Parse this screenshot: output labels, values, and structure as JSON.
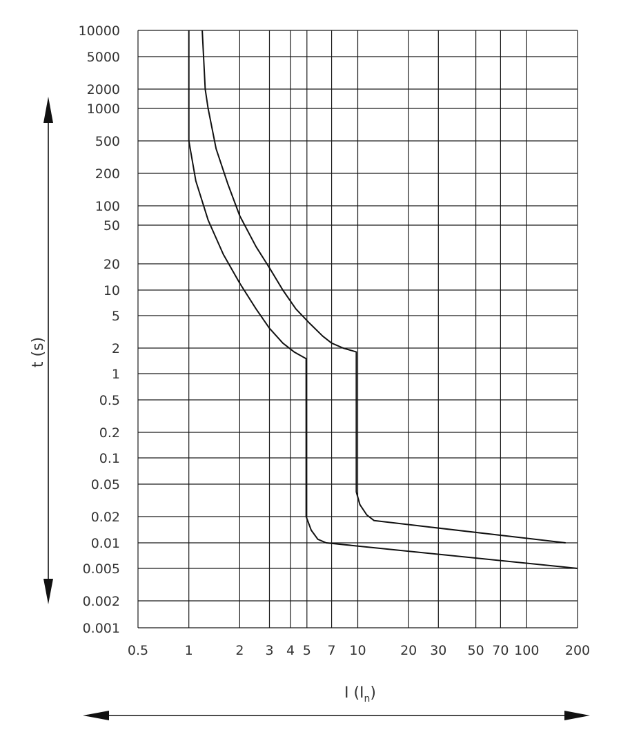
{
  "chart_data": {
    "type": "line",
    "x_scale": "log",
    "y_scale": "log",
    "grid": true,
    "xlabel": {
      "main": "I (I",
      "sub": "n",
      "close": ")"
    },
    "ylabel": "t (s)",
    "x_ticks": [
      "0.5",
      "1",
      "2",
      "3",
      "4",
      "5",
      "7",
      "10",
      "20",
      "30",
      "50",
      "70",
      "100",
      "200"
    ],
    "y_ticks": [
      "10000",
      "5000",
      "2000",
      "1000",
      "500",
      "200",
      "100",
      "50",
      "20",
      "10",
      "5",
      "2",
      "1",
      "0.5",
      "0.2",
      "0.1",
      "0.05",
      "0.02",
      "0.01",
      "0.005",
      "0.002",
      "0.001"
    ],
    "series": [
      {
        "points": [
          [
            1,
            10000
          ],
          [
            1,
            2000
          ],
          [
            1,
            500
          ],
          [
            1.1,
            170
          ],
          [
            1.3,
            60
          ],
          [
            1.6,
            25
          ],
          [
            2,
            12
          ],
          [
            2.5,
            6
          ],
          [
            3,
            3.5
          ],
          [
            3.6,
            2.3
          ],
          [
            4.2,
            1.8
          ],
          [
            4.95,
            1.5
          ],
          [
            4.95,
            0.02
          ],
          [
            5.3,
            0.014
          ],
          [
            5.8,
            0.011
          ],
          [
            6.5,
            0.01
          ],
          [
            200,
            0.005
          ]
        ]
      },
      {
        "points": [
          [
            1.2,
            10000
          ],
          [
            1.25,
            2000
          ],
          [
            1.3,
            1000
          ],
          [
            1.45,
            400
          ],
          [
            1.7,
            160
          ],
          [
            2,
            70
          ],
          [
            2.5,
            30
          ],
          [
            3,
            18
          ],
          [
            3.6,
            10
          ],
          [
            4.3,
            6
          ],
          [
            5.2,
            4
          ],
          [
            6.2,
            2.8
          ],
          [
            7,
            2.3
          ],
          [
            8.2,
            2
          ],
          [
            9.8,
            1.8
          ],
          [
            9.8,
            0.04
          ],
          [
            10.3,
            0.028
          ],
          [
            11.3,
            0.021
          ],
          [
            12.5,
            0.018
          ],
          [
            170,
            0.01
          ]
        ]
      }
    ]
  }
}
